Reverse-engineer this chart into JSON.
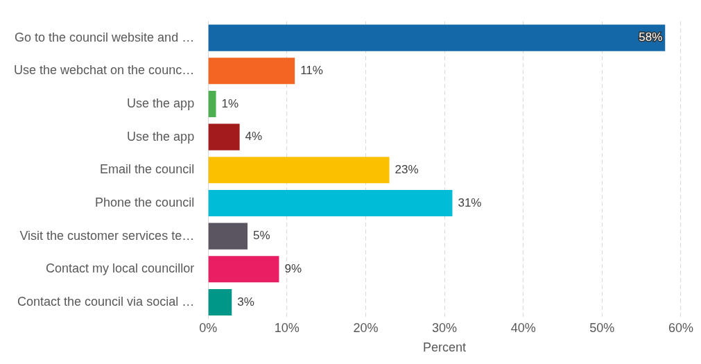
{
  "chart_data": {
    "type": "bar",
    "orientation": "horizontal",
    "xlabel": "Percent",
    "categories": [
      "Go to the council website and …",
      "Use the webchat on the counc…",
      "Use the app",
      "Use the app",
      "Email the council",
      "Phone the council",
      "Visit the customer services te…",
      "Contact my local councillor",
      "Contact the council via social …"
    ],
    "values": [
      58,
      11,
      1,
      4,
      23,
      31,
      5,
      9,
      3
    ],
    "colors": [
      "#1468a8",
      "#f26522",
      "#4caf50",
      "#a31c1c",
      "#fbc000",
      "#00bcd6",
      "#5a5560",
      "#e91e63",
      "#009688"
    ],
    "value_labels": [
      "58%",
      "11%",
      "1%",
      "4%",
      "23%",
      "31%",
      "5%",
      "9%",
      "3%"
    ],
    "xlim": [
      0,
      60
    ],
    "xticks": [
      {
        "value": 0,
        "label": "0%"
      },
      {
        "value": 10,
        "label": "10%"
      },
      {
        "value": 20,
        "label": "20%"
      },
      {
        "value": 30,
        "label": "30%"
      },
      {
        "value": 40,
        "label": "40%"
      },
      {
        "value": 50,
        "label": "50%"
      },
      {
        "value": 60,
        "label": "60%"
      }
    ],
    "grid": "x",
    "legend": false
  }
}
